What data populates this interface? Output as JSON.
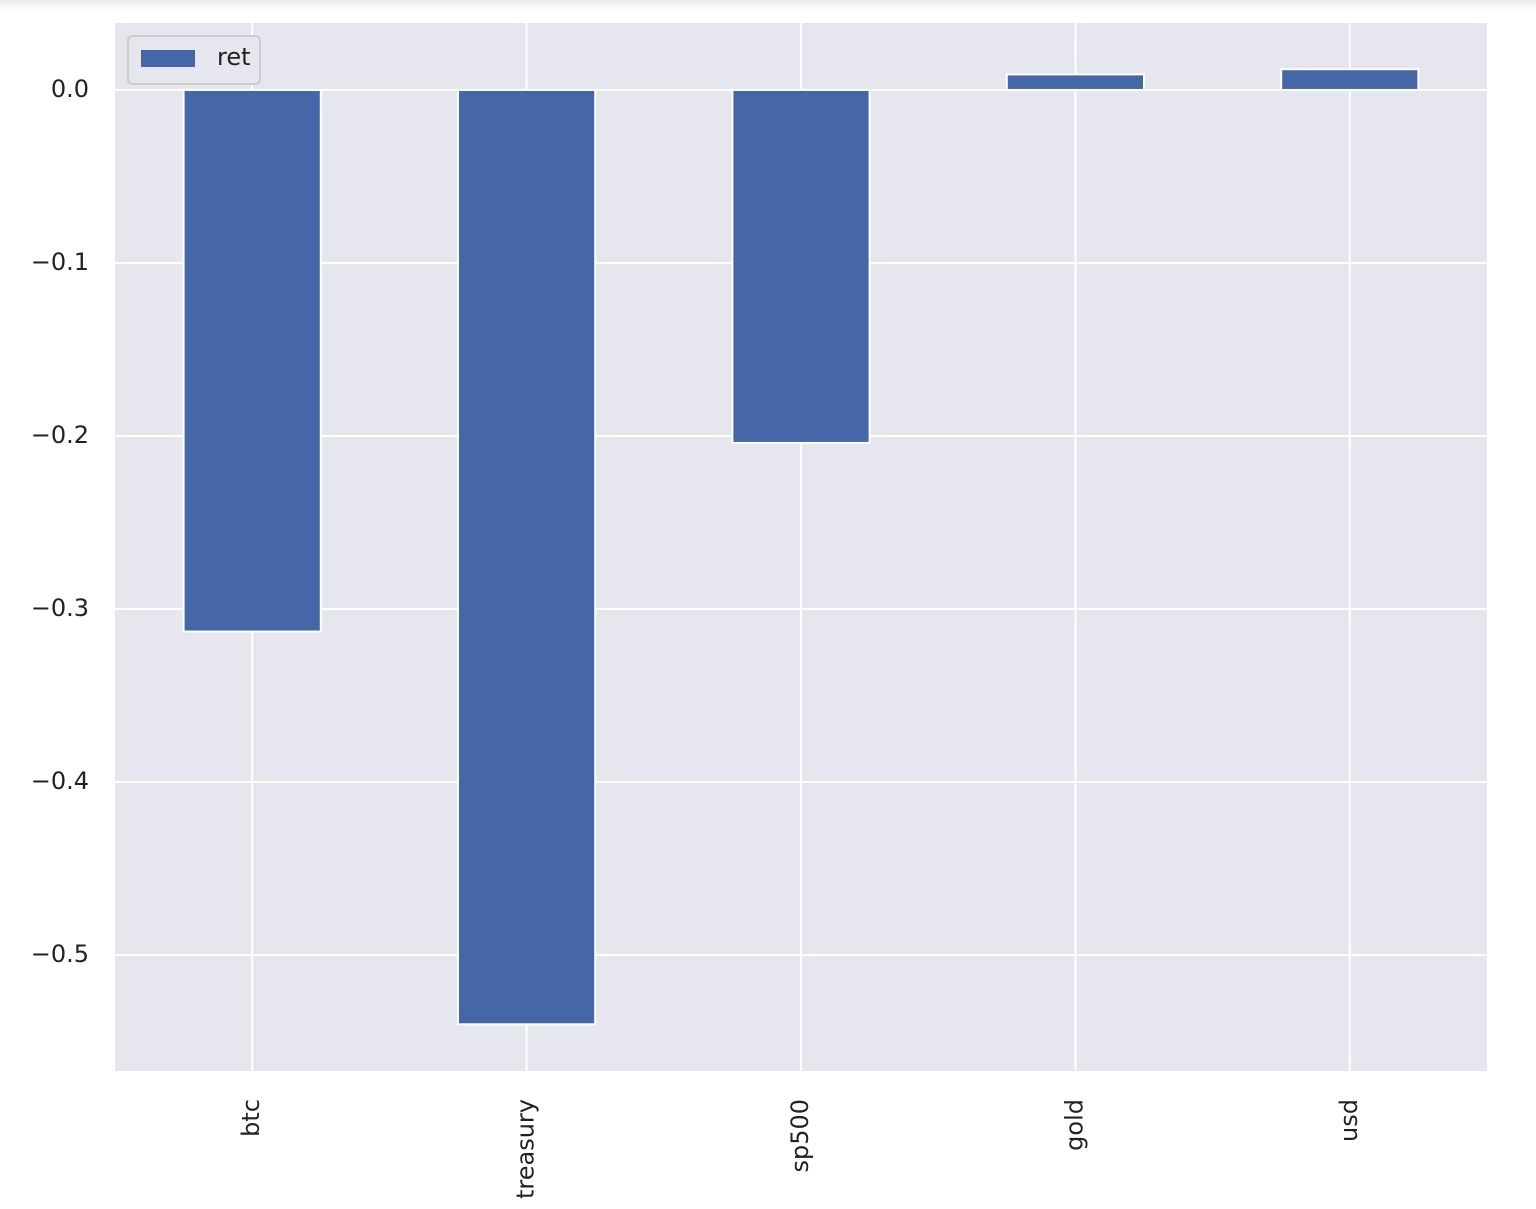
{
  "chart_data": {
    "type": "bar",
    "categories": [
      "btc",
      "treasury",
      "sp500",
      "gold",
      "usd"
    ],
    "series": [
      {
        "name": "ret",
        "color": "#4567a7",
        "values": [
          -0.313,
          -0.54,
          -0.204,
          0.009,
          0.012
        ]
      }
    ],
    "ylim": [
      -0.567,
      0.0387
    ],
    "yticks": [
      {
        "value": 0,
        "label": "0.0"
      },
      {
        "value": -0.1,
        "label": "−0.1"
      },
      {
        "value": -0.2,
        "label": "−0.2"
      },
      {
        "value": -0.3,
        "label": "−0.3"
      },
      {
        "value": -0.4,
        "label": "−0.4"
      },
      {
        "value": -0.5,
        "label": "−0.5"
      }
    ],
    "grid": true,
    "legend": "upper-left"
  }
}
